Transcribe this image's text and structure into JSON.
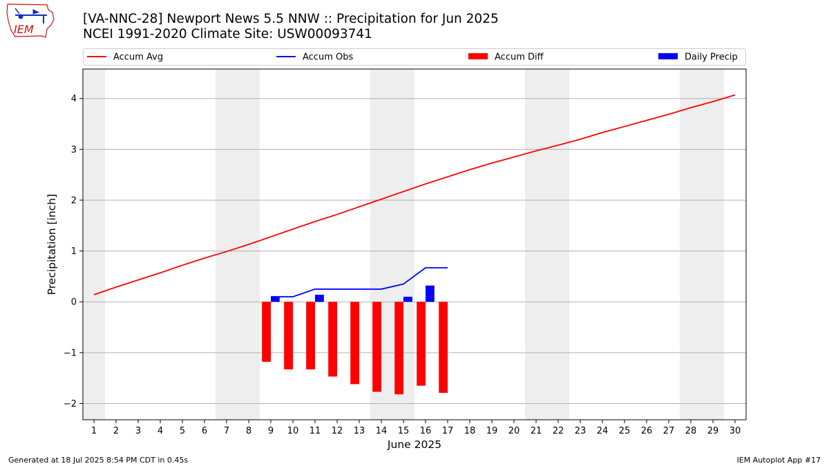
{
  "header": {
    "title_line1": "[VA-NNC-28] Newport News 5.5 NNW :: Precipitation for Jun 2025",
    "title_line2": "NCEI 1991-2020 Climate Site: USW00093741"
  },
  "logo": {
    "text": "IEM"
  },
  "footer": {
    "generated": "Generated at 18 Jul 2025 8:54 PM CDT in 0.45s",
    "app": "IEM Autoplot App #17"
  },
  "colors": {
    "accum_avg": "#ff0000",
    "accum_obs": "#0000ff",
    "accum_diff": "#ff0000",
    "daily_precip": "#0000ff",
    "weekend_shade": "#eeeeee",
    "grid": "#b0b0b0"
  },
  "chart_data": {
    "type": "bar",
    "xlabel": "June 2025",
    "ylabel": "Precipitation [inch]",
    "xlim": [
      0.5,
      30.5
    ],
    "ylim": [
      -2.32,
      4.58
    ],
    "x": [
      1,
      2,
      3,
      4,
      5,
      6,
      7,
      8,
      9,
      10,
      11,
      12,
      13,
      14,
      15,
      16,
      17,
      18,
      19,
      20,
      21,
      22,
      23,
      24,
      25,
      26,
      27,
      28,
      29,
      30
    ],
    "x_ticks": [
      "1",
      "2",
      "3",
      "4",
      "5",
      "6",
      "7",
      "8",
      "9",
      "10",
      "11",
      "12",
      "13",
      "14",
      "15",
      "16",
      "17",
      "18",
      "19",
      "20",
      "21",
      "22",
      "23",
      "24",
      "25",
      "26",
      "27",
      "28",
      "29",
      "30"
    ],
    "y_ticks": [
      -2,
      -1,
      0,
      1,
      2,
      3,
      4
    ],
    "y_tick_labels": [
      "−2",
      "−1",
      "0",
      "1",
      "2",
      "3",
      "4"
    ],
    "grid": "horizontal",
    "weekends": [
      [
        1
      ],
      [
        7,
        8
      ],
      [
        14,
        15
      ],
      [
        21,
        22
      ],
      [
        28,
        29
      ]
    ],
    "legend": {
      "placement": "top"
    },
    "series": [
      {
        "name": "Accum Avg",
        "type": "line",
        "x": [
          1,
          2,
          3,
          4,
          5,
          6,
          7,
          8,
          9,
          10,
          11,
          12,
          13,
          14,
          15,
          16,
          17,
          18,
          19,
          20,
          21,
          22,
          23,
          24,
          25,
          26,
          27,
          28,
          29,
          30
        ],
        "values": [
          0.14,
          0.29,
          0.43,
          0.57,
          0.72,
          0.86,
          0.99,
          1.13,
          1.28,
          1.43,
          1.58,
          1.72,
          1.87,
          2.02,
          2.17,
          2.32,
          2.46,
          2.6,
          2.73,
          2.85,
          2.97,
          3.08,
          3.2,
          3.33,
          3.45,
          3.57,
          3.69,
          3.82,
          3.94,
          4.07
        ]
      },
      {
        "name": "Accum Obs",
        "type": "line",
        "x": [
          9,
          10,
          11,
          12,
          13,
          14,
          15,
          16,
          17
        ],
        "values": [
          0.1,
          0.1,
          0.25,
          0.25,
          0.25,
          0.25,
          0.35,
          0.67,
          0.67
        ]
      },
      {
        "name": "Accum Diff",
        "type": "bar",
        "x": [
          9,
          10,
          11,
          12,
          13,
          14,
          15,
          16,
          17
        ],
        "values": [
          -1.18,
          -1.33,
          -1.33,
          -1.47,
          -1.62,
          -1.77,
          -1.82,
          -1.65,
          -1.79
        ]
      },
      {
        "name": "Daily Precip",
        "type": "bar",
        "x": [
          9,
          10,
          11,
          12,
          13,
          14,
          15,
          16,
          17
        ],
        "values": [
          0.1,
          0.0,
          0.14,
          0.0,
          0.0,
          0.0,
          0.1,
          0.32,
          0.0
        ]
      }
    ]
  }
}
